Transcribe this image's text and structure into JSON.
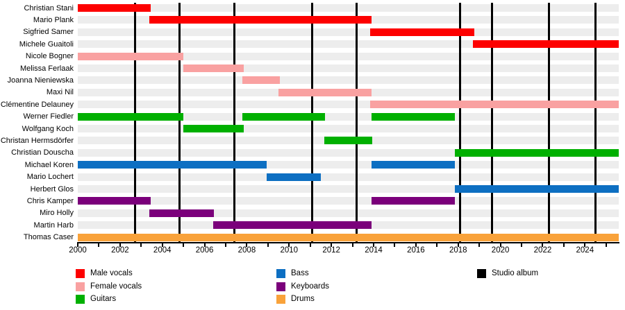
{
  "chart_data": {
    "type": "timeline",
    "description": "Band members timeline (Gantt chart) with studio album release markers",
    "x_axis": {
      "start": 2000,
      "end": 2025.6,
      "label_interval": 2,
      "minor_tick_interval": 1,
      "tick_labels": [
        "2000",
        "2002",
        "2004",
        "2006",
        "2008",
        "2010",
        "2012",
        "2014",
        "2016",
        "2018",
        "2020",
        "2022",
        "2024"
      ]
    },
    "colors": {
      "male_vocals": "#fd0000",
      "female_vocals": "#f9a1a1",
      "guitars": "#00b000",
      "bass": "#0d6fc2",
      "keyboards": "#7b007b",
      "drums": "#f9a23a",
      "studio_album": "#000000",
      "row_stripe": "#ededed"
    },
    "rows": [
      {
        "name": "Christian Stani",
        "instrument": "male_vocals",
        "spans": [
          [
            2000,
            2003.45
          ]
        ]
      },
      {
        "name": "Mario Plank",
        "instrument": "male_vocals",
        "spans": [
          [
            2003.4,
            2013.9
          ]
        ]
      },
      {
        "name": "Sigfried Samer",
        "instrument": "male_vocals",
        "spans": [
          [
            2013.85,
            2018.75
          ]
        ]
      },
      {
        "name": "Michele Guaitoli",
        "instrument": "male_vocals",
        "spans": [
          [
            2018.7,
            2025.6
          ]
        ]
      },
      {
        "name": "Nicole Bogner",
        "instrument": "female_vocals",
        "spans": [
          [
            2000,
            2005.0
          ]
        ]
      },
      {
        "name": "Melissa Ferlaak",
        "instrument": "female_vocals",
        "spans": [
          [
            2005.0,
            2007.85
          ]
        ]
      },
      {
        "name": "Joanna Nieniewska",
        "instrument": "female_vocals",
        "spans": [
          [
            2007.8,
            2009.55
          ]
        ]
      },
      {
        "name": "Maxi Nil",
        "instrument": "female_vocals",
        "spans": [
          [
            2009.5,
            2013.9
          ]
        ]
      },
      {
        "name": "Clémentine Delauney",
        "instrument": "female_vocals",
        "spans": [
          [
            2013.85,
            2025.6
          ]
        ]
      },
      {
        "name": "Werner Fiedler",
        "instrument": "guitars",
        "spans": [
          [
            2000,
            2005.0
          ],
          [
            2007.8,
            2011.7
          ],
          [
            2013.9,
            2017.85
          ]
        ]
      },
      {
        "name": "Wolfgang Koch",
        "instrument": "guitars",
        "spans": [
          [
            2005.0,
            2007.85
          ]
        ]
      },
      {
        "name": "Christan Hermsdörfer",
        "instrument": "guitars",
        "spans": [
          [
            2011.65,
            2013.95
          ]
        ]
      },
      {
        "name": "Christian Douscha",
        "instrument": "guitars",
        "spans": [
          [
            2017.85,
            2025.6
          ]
        ]
      },
      {
        "name": "Michael Koren",
        "instrument": "bass",
        "spans": [
          [
            2000,
            2008.95
          ],
          [
            2013.9,
            2017.85
          ]
        ]
      },
      {
        "name": "Mario Lochert",
        "instrument": "bass",
        "spans": [
          [
            2008.95,
            2011.5
          ]
        ]
      },
      {
        "name": "Herbert Glos",
        "instrument": "bass",
        "spans": [
          [
            2017.85,
            2025.6
          ]
        ]
      },
      {
        "name": "Chris Kamper",
        "instrument": "keyboards",
        "spans": [
          [
            2000,
            2003.45
          ],
          [
            2013.9,
            2017.85
          ]
        ]
      },
      {
        "name": "Miro Holly",
        "instrument": "keyboards",
        "spans": [
          [
            2003.4,
            2006.45
          ]
        ]
      },
      {
        "name": "Martin Harb",
        "instrument": "keyboards",
        "spans": [
          [
            2006.4,
            2013.9
          ]
        ]
      },
      {
        "name": "Thomas Caser",
        "instrument": "drums",
        "spans": [
          [
            2000,
            2025.6
          ]
        ]
      }
    ],
    "albums": {
      "legend_label": "Studio album",
      "years": [
        2002.7,
        2004.8,
        2007.4,
        2011.1,
        2013.2,
        2018.1,
        2019.6,
        2022.3,
        2024.5
      ]
    },
    "legend": {
      "items": [
        {
          "label": "Male vocals",
          "color_key": "male_vocals",
          "col": 0
        },
        {
          "label": "Female vocals",
          "color_key": "female_vocals",
          "col": 0
        },
        {
          "label": "Guitars",
          "color_key": "guitars",
          "col": 0
        },
        {
          "label": "Bass",
          "color_key": "bass",
          "col": 1
        },
        {
          "label": "Keyboards",
          "color_key": "keyboards",
          "col": 1
        },
        {
          "label": "Drums",
          "color_key": "drums",
          "col": 1
        },
        {
          "label": "Studio album",
          "color_key": "studio_album",
          "col": 2
        }
      ]
    }
  }
}
